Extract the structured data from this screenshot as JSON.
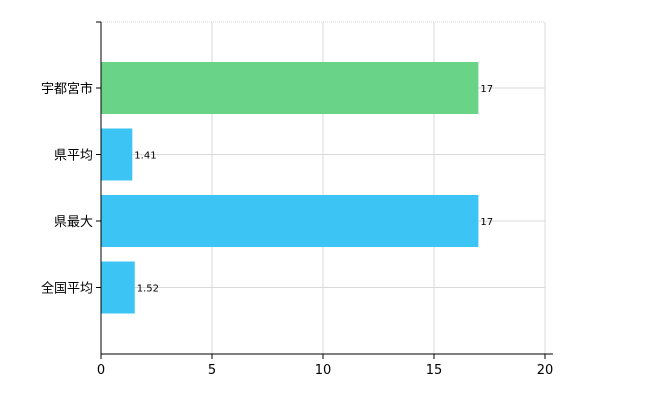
{
  "chart_data": {
    "type": "bar",
    "orientation": "horizontal",
    "categories": [
      "宇都宮市",
      "県平均",
      "県最大",
      "全国平均"
    ],
    "values": [
      17,
      1.41,
      17,
      1.52
    ],
    "data_labels": [
      "17",
      "1.41",
      "17",
      "1.52"
    ],
    "bar_colors": [
      "#69d488",
      "#3cc4f5",
      "#3cc4f5",
      "#3cc4f5"
    ],
    "xlim": [
      0,
      20
    ],
    "x_ticks": [
      0,
      5,
      10,
      15,
      20
    ],
    "x_tick_labels": [
      "0",
      "5",
      "10",
      "15",
      "20"
    ],
    "grid": true,
    "grid_color": "#d9d9d9",
    "legend": "none"
  }
}
